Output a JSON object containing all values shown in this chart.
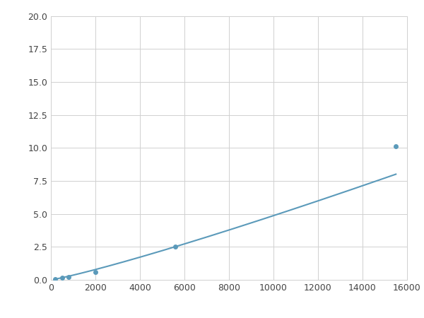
{
  "x": [
    200,
    500,
    800,
    2000,
    5600,
    15500
  ],
  "y": [
    0.08,
    0.15,
    0.22,
    0.6,
    2.5,
    10.1
  ],
  "line_color": "#5b9aba",
  "marker_color": "#5b9aba",
  "marker_size": 4,
  "xlim": [
    0,
    16000
  ],
  "ylim": [
    0,
    20
  ],
  "xticks": [
    0,
    2000,
    4000,
    6000,
    8000,
    10000,
    12000,
    14000,
    16000
  ],
  "yticks": [
    0.0,
    2.5,
    5.0,
    7.5,
    10.0,
    12.5,
    15.0,
    17.5,
    20.0
  ],
  "grid": true,
  "background_color": "#ffffff",
  "line_width": 1.5,
  "figsize": [
    6.0,
    4.5
  ],
  "dpi": 100
}
